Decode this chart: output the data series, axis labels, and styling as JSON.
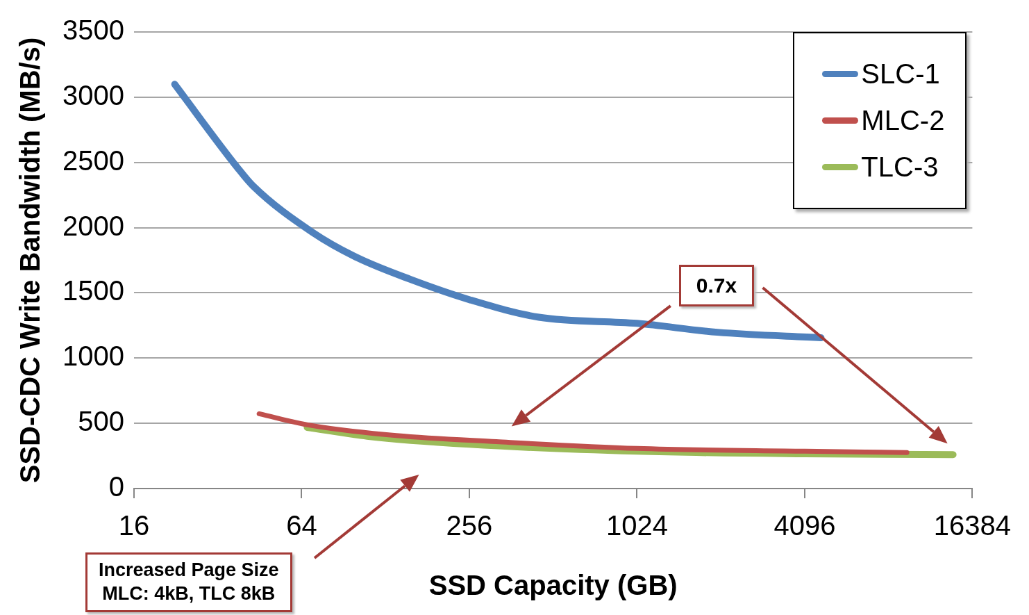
{
  "chart_data": {
    "type": "line",
    "xlabel": "SSD Capacity (GB)",
    "ylabel": "SSD-CDC Write Bandwidth (MB/s)",
    "log": "x",
    "xlim": [
      16,
      16384
    ],
    "xticks": [
      16,
      64,
      256,
      1024,
      4096,
      16384
    ],
    "ylim": [
      0,
      3500
    ],
    "yticks": [
      0,
      500,
      1000,
      1500,
      2000,
      2500,
      3000,
      3500
    ],
    "grid": "y",
    "legend": "top right",
    "marker": "none",
    "line_style": "solid",
    "series": [
      {
        "name": "SLC-1",
        "color": "#4f81bd",
        "x": [
          22.4,
          37.7,
          42.9,
          70,
          101,
          157,
          256,
          455,
          1024,
          1990,
          4690
        ],
        "values": [
          3099,
          2458,
          2318,
          1964,
          1771,
          1604,
          1448,
          1313,
          1266,
          1198,
          1156
        ]
      },
      {
        "name": "MLC-2",
        "color": "#c0504d",
        "x": [
          45,
          69,
          140,
          320,
          1024,
          4096,
          9540
        ],
        "values": [
          573,
          484,
          406,
          359,
          307,
          286,
          276
        ]
      },
      {
        "name": "TLC-3",
        "color": "#9bbb59",
        "x": [
          67,
          110,
          256,
          1024,
          4096,
          13970
        ],
        "values": [
          469,
          401,
          339,
          286,
          266,
          260
        ]
      }
    ],
    "annotations": [
      "0.7x",
      "Increased Page Size\nMLC: 4kB, TLC 8kB"
    ]
  }
}
